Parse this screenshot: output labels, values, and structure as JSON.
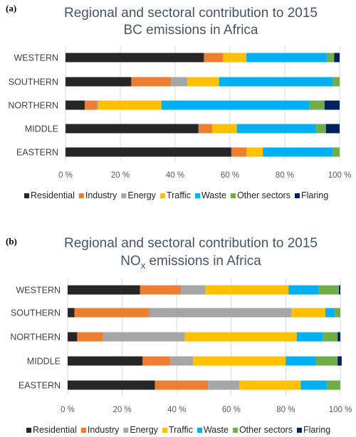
{
  "chart_data": [
    {
      "type": "bar",
      "orientation": "horizontal",
      "stacked": true,
      "panel_label": "(a)",
      "title_lines": [
        "Regional and sectoral contribution to 2015",
        "BC emissions in Africa"
      ],
      "categories": [
        "WESTERN",
        "SOUTHERN",
        "NORTHERN",
        "MIDDLE",
        "EASTERN"
      ],
      "xlim": [
        0,
        100
      ],
      "xticks": [
        "0 %",
        "20 %",
        "40 %",
        "60 %",
        "80 %",
        "100 %"
      ],
      "grid": true,
      "legend_position": "bottom",
      "series": [
        {
          "name": "Residential",
          "color": "#262626",
          "values": [
            50.5,
            24,
            7,
            48.5,
            60.5
          ]
        },
        {
          "name": "Industry",
          "color": "#ed7d31",
          "values": [
            7,
            14.5,
            4.5,
            5,
            5.5
          ]
        },
        {
          "name": "Energy",
          "color": "#a5a5a5",
          "values": [
            0,
            6,
            0.5,
            0,
            0
          ]
        },
        {
          "name": "Traffic",
          "color": "#ffc000",
          "values": [
            8.5,
            11.5,
            23,
            9,
            6
          ]
        },
        {
          "name": "Waste",
          "color": "#00b0f0",
          "values": [
            29.5,
            41.5,
            54,
            29,
            25.5
          ]
        },
        {
          "name": "Other sectors",
          "color": "#70ad47",
          "values": [
            2.5,
            2.5,
            5.5,
            3.5,
            2.5
          ]
        },
        {
          "name": "Flaring",
          "color": "#002060",
          "values": [
            2,
            0,
            5.5,
            5,
            0
          ]
        }
      ]
    },
    {
      "type": "bar",
      "orientation": "horizontal",
      "stacked": true,
      "panel_label": "(b)",
      "title_line1": "Regional and sectoral contribution to 2015",
      "title_line2_main": "NO",
      "title_line2_sub": "x",
      "title_line2_rest": " emissions in Africa",
      "categories": [
        "WESTERN",
        "SOUTHERN",
        "NORTHERN",
        "MIDDLE",
        "EASTERN"
      ],
      "xlim": [
        0,
        100
      ],
      "xticks": [
        "0 %",
        "20 %",
        "40 %",
        "60 %",
        "80 %",
        "100 %"
      ],
      "grid": true,
      "legend_position": "bottom",
      "series": [
        {
          "name": "Residential",
          "color": "#262626",
          "values": [
            26.5,
            2.5,
            3.5,
            27.5,
            32
          ]
        },
        {
          "name": "Industry",
          "color": "#ed7d31",
          "values": [
            15,
            27.5,
            9.5,
            10,
            19.5
          ]
        },
        {
          "name": "Energy",
          "color": "#a5a5a5",
          "values": [
            9,
            52,
            30,
            8.5,
            11.5
          ]
        },
        {
          "name": "Traffic",
          "color": "#ffc000",
          "values": [
            30.5,
            12.5,
            41,
            34,
            22.5
          ]
        },
        {
          "name": "Waste",
          "color": "#00b0f0",
          "values": [
            11,
            3.5,
            9.5,
            11,
            9.5
          ]
        },
        {
          "name": "Other sectors",
          "color": "#70ad47",
          "values": [
            7.5,
            2,
            5.5,
            8,
            5
          ]
        },
        {
          "name": "Flaring",
          "color": "#002060",
          "values": [
            0.5,
            0,
            1,
            1.5,
            0
          ]
        }
      ]
    }
  ]
}
